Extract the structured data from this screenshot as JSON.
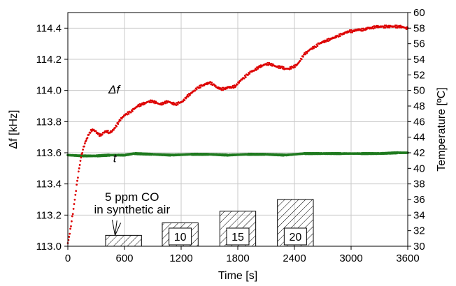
{
  "chart_data": {
    "type": "scatter",
    "title": "",
    "xlabel": "Time [s]",
    "ylabel_left": "Δf  [kHz]",
    "ylabel_right": "Temperature [ºC]",
    "xlim": [
      0,
      3600
    ],
    "ylim_left": [
      113.0,
      114.5
    ],
    "ylim_right": [
      30,
      60
    ],
    "grid": true,
    "x_ticks": [
      0,
      600,
      1200,
      1800,
      2400,
      3000,
      3600
    ],
    "y_left_ticks": [
      "113.0",
      "113.2",
      "113.4",
      "113.6",
      "113.8",
      "114.0",
      "114.2",
      "114.4"
    ],
    "y_right_ticks": [
      30,
      32,
      34,
      36,
      38,
      40,
      42,
      44,
      46,
      48,
      50,
      52,
      54,
      56,
      58,
      60
    ],
    "series": [
      {
        "name": "Δf",
        "axis": "left",
        "color": "#dd0000",
        "x": [
          0,
          20,
          40,
          60,
          80,
          100,
          120,
          140,
          160,
          180,
          200,
          230,
          260,
          290,
          320,
          350,
          380,
          410,
          440,
          470,
          500,
          540,
          580,
          620,
          660,
          700,
          740,
          780,
          820,
          860,
          900,
          940,
          980,
          1020,
          1060,
          1100,
          1140,
          1180,
          1220,
          1260,
          1300,
          1340,
          1380,
          1420,
          1460,
          1500,
          1540,
          1580,
          1620,
          1660,
          1700,
          1740,
          1780,
          1820,
          1860,
          1900,
          1940,
          1980,
          2020,
          2060,
          2100,
          2140,
          2180,
          2220,
          2260,
          2300,
          2340,
          2380,
          2420,
          2460,
          2500,
          2540,
          2580,
          2620,
          2660,
          2700,
          2740,
          2780,
          2820,
          2860,
          2900,
          2940,
          2980,
          3020,
          3060,
          3100,
          3140,
          3180,
          3220,
          3260,
          3300,
          3340,
          3380,
          3420,
          3460,
          3500,
          3540,
          3580,
          3600
        ],
        "y": [
          113.02,
          113.08,
          113.16,
          113.24,
          113.33,
          113.42,
          113.5,
          113.57,
          113.62,
          113.66,
          113.69,
          113.73,
          113.75,
          113.74,
          113.72,
          113.71,
          113.73,
          113.74,
          113.73,
          113.74,
          113.76,
          113.8,
          113.83,
          113.85,
          113.86,
          113.88,
          113.9,
          113.91,
          113.92,
          113.93,
          113.93,
          113.92,
          113.91,
          113.92,
          113.93,
          113.92,
          113.91,
          113.92,
          113.93,
          113.96,
          113.98,
          114.0,
          114.02,
          114.03,
          114.04,
          114.05,
          114.04,
          114.02,
          114.01,
          114.01,
          114.02,
          114.02,
          114.03,
          114.06,
          114.08,
          114.1,
          114.12,
          114.13,
          114.15,
          114.16,
          114.17,
          114.17,
          114.16,
          114.15,
          114.15,
          114.14,
          114.14,
          114.15,
          114.16,
          114.19,
          114.23,
          114.25,
          114.27,
          114.28,
          114.3,
          114.31,
          114.32,
          114.33,
          114.34,
          114.35,
          114.36,
          114.37,
          114.38,
          114.38,
          114.39,
          114.39,
          114.39,
          114.4,
          114.4,
          114.41,
          114.41,
          114.41,
          114.41,
          114.41,
          114.41,
          114.41,
          114.41,
          114.4,
          114.4
        ]
      },
      {
        "name": "t",
        "axis": "right",
        "color": "#1f7a1f",
        "x": [
          0,
          150,
          300,
          450,
          600,
          700,
          900,
          1100,
          1300,
          1500,
          1700,
          1900,
          2100,
          2300,
          2500,
          2700,
          2900,
          3100,
          3300,
          3500,
          3600
        ],
        "y": [
          41.7,
          41.6,
          41.6,
          41.7,
          41.7,
          41.9,
          41.8,
          41.7,
          41.8,
          41.8,
          41.7,
          41.8,
          41.8,
          41.7,
          41.9,
          41.9,
          41.9,
          41.9,
          41.9,
          42.0,
          42.0
        ]
      }
    ],
    "exposure_pulses": [
      {
        "start": 400,
        "end": 780,
        "top": 113.07,
        "label": ""
      },
      {
        "start": 1000,
        "end": 1380,
        "top": 113.15,
        "label": "10"
      },
      {
        "start": 1610,
        "end": 1990,
        "top": 113.225,
        "label": "15"
      },
      {
        "start": 2220,
        "end": 2600,
        "top": 113.3,
        "label": "20"
      }
    ],
    "annotations": {
      "pulse_line1": "5 ppm CO",
      "pulse_line2": "in synthetic air"
    }
  }
}
